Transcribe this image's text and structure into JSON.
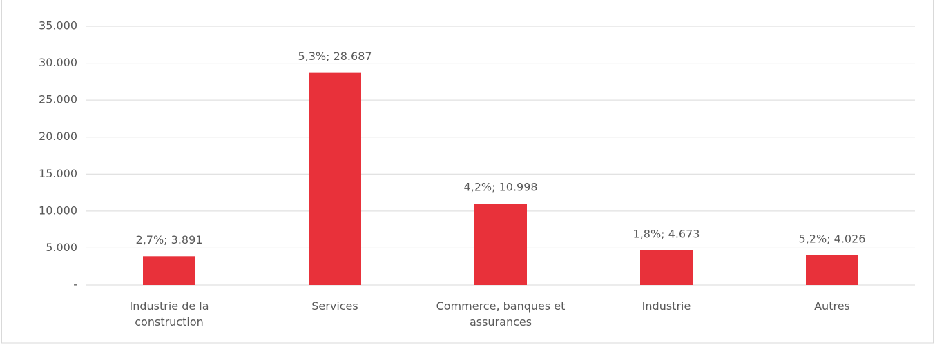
{
  "chart_data": {
    "type": "bar",
    "categories": [
      "Industrie de la construction",
      "Services",
      "Commerce, banques et assurances",
      "Industrie",
      "Autres"
    ],
    "values": [
      3891,
      28687,
      10998,
      4673,
      4026
    ],
    "value_labels": [
      "2,7%; 3.891",
      "5,3%; 28.687",
      "4,2%; 10.998",
      "1,8%; 4.673",
      "5,2%; 4.026"
    ],
    "color": "#e8313a",
    "ylim": [
      0,
      35000
    ],
    "yticks": [
      {
        "value": 0,
        "label": "-"
      },
      {
        "value": 5000,
        "label": "5.000"
      },
      {
        "value": 10000,
        "label": "10.000"
      },
      {
        "value": 15000,
        "label": "15.000"
      },
      {
        "value": 20000,
        "label": "20.000"
      },
      {
        "value": 25000,
        "label": "25.000"
      },
      {
        "value": 30000,
        "label": "30.000"
      },
      {
        "value": 35000,
        "label": "35.000"
      }
    ],
    "grid": true
  }
}
